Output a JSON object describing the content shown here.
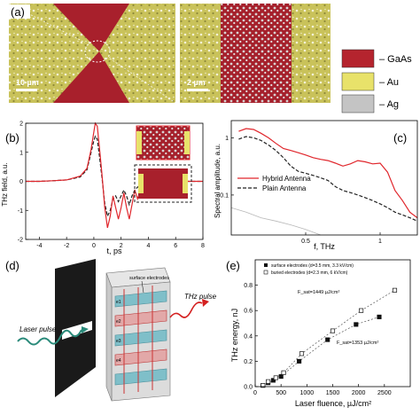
{
  "panel_a": {
    "label": "(a)",
    "scalebar_left": "10 µm",
    "scalebar_right": "2 µm",
    "legend": [
      {
        "label": "– GaAs",
        "color": "#b5242e"
      },
      {
        "label": "– Au",
        "color": "#e8e26a"
      },
      {
        "label": "– Ag",
        "color": "#c4c4c4"
      }
    ],
    "colors": {
      "gaas": "#a8202c",
      "au": "#c9c25a",
      "ag": "#d0d0d0"
    }
  },
  "panel_b": {
    "label": "(b)"
  },
  "panel_c": {
    "label": "(c)"
  },
  "panel_d": {
    "label": "(d)",
    "laser_pulse": "Laser pulse",
    "thz_pulse": "THz pulse",
    "surface_electrodes": "surface electrodes",
    "electrode_labels": [
      "e1",
      "e2",
      "e3",
      "e4"
    ]
  },
  "panel_e": {
    "label": "(e)"
  },
  "chart_data": [
    {
      "type": "line",
      "panel": "b",
      "xlabel": "t, ps",
      "ylabel": "THz field, a.u.",
      "xlim": [
        -5,
        8
      ],
      "ylim": [
        -2,
        2
      ],
      "xticks": [
        -4,
        -2,
        0,
        2,
        4,
        6,
        8
      ],
      "yticks": [
        -2,
        -1,
        0,
        1,
        2
      ],
      "series": [
        {
          "name": "Hybrid Antenna",
          "color": "#e0262c",
          "style": "solid",
          "x": [
            -5,
            -4,
            -3,
            -2,
            -1,
            -0.5,
            -0.2,
            0,
            0.1,
            0.25,
            0.4,
            0.6,
            0.8,
            1.0,
            1.2,
            1.4,
            1.6,
            1.8,
            2.0,
            2.2,
            2.4,
            2.6,
            2.8,
            3.0,
            3.2,
            3.5,
            4.0,
            4.5,
            5,
            6,
            7,
            8
          ],
          "values": [
            0,
            0,
            0.02,
            0.05,
            0.18,
            0.45,
            1.1,
            1.7,
            2.0,
            1.9,
            1.2,
            0.2,
            -0.9,
            -1.6,
            -1.2,
            -0.5,
            -0.9,
            -1.3,
            -0.9,
            -0.4,
            -0.9,
            -1.3,
            -0.8,
            -0.3,
            -0.6,
            -0.2,
            0.1,
            -0.1,
            0.05,
            0,
            0,
            0
          ]
        },
        {
          "name": "Plain Antenna",
          "color": "#222222",
          "style": "dashed",
          "x": [
            -5,
            -4,
            -3,
            -2,
            -1,
            -0.5,
            -0.2,
            0,
            0.1,
            0.25,
            0.4,
            0.6,
            0.8,
            1.0,
            1.2,
            1.4,
            1.6,
            1.8,
            2.0,
            2.2,
            2.4,
            2.6,
            2.8,
            3.0,
            3.2,
            3.5,
            4.0,
            4.5,
            5,
            6,
            7,
            8
          ],
          "values": [
            0,
            0,
            0.02,
            0.05,
            0.15,
            0.4,
            1.0,
            1.4,
            1.55,
            1.45,
            0.9,
            0.1,
            -0.75,
            -1.2,
            -1.0,
            -0.6,
            -0.5,
            -0.7,
            -0.5,
            -0.3,
            -0.5,
            -0.8,
            -0.5,
            -0.3,
            -0.2,
            -0.1,
            0.05,
            0,
            0,
            0,
            0,
            0
          ]
        }
      ]
    },
    {
      "type": "line",
      "panel": "c",
      "xlabel": "f, THz",
      "ylabel": "Spectral amplitude, a.u.",
      "yscale": "log",
      "xlim": [
        0,
        1.25
      ],
      "ylim": [
        0.02,
        2
      ],
      "xticks": [
        0.5,
        1
      ],
      "yticks": [
        0.1,
        1
      ],
      "legend_position": "center",
      "series": [
        {
          "name": "Hybrid Antenna",
          "color": "#e0262c",
          "style": "solid",
          "x": [
            0.05,
            0.1,
            0.15,
            0.2,
            0.25,
            0.3,
            0.35,
            0.4,
            0.45,
            0.5,
            0.55,
            0.6,
            0.65,
            0.7,
            0.75,
            0.8,
            0.85,
            0.9,
            0.95,
            1.0,
            1.05,
            1.1,
            1.15,
            1.2,
            1.25
          ],
          "values": [
            1.3,
            1.45,
            1.4,
            1.2,
            1.0,
            0.8,
            0.65,
            0.6,
            0.55,
            0.5,
            0.45,
            0.42,
            0.4,
            0.36,
            0.32,
            0.35,
            0.4,
            0.38,
            0.35,
            0.36,
            0.25,
            0.12,
            0.08,
            0.05,
            0.04
          ]
        },
        {
          "name": "Plain Antenna",
          "color": "#222222",
          "style": "dashed",
          "x": [
            0.05,
            0.1,
            0.15,
            0.2,
            0.25,
            0.3,
            0.35,
            0.4,
            0.45,
            0.5,
            0.55,
            0.6,
            0.65,
            0.7,
            0.75,
            0.8,
            0.85,
            0.9,
            0.95,
            1.0,
            1.05,
            1.1,
            1.15,
            1.2,
            1.25
          ],
          "values": [
            0.95,
            1.05,
            1.0,
            0.9,
            0.75,
            0.6,
            0.45,
            0.32,
            0.26,
            0.24,
            0.22,
            0.2,
            0.18,
            0.14,
            0.12,
            0.11,
            0.1,
            0.09,
            0.08,
            0.07,
            0.06,
            0.05,
            0.045,
            0.04,
            0.035
          ]
        },
        {
          "name": "",
          "color": "#b8b8b8",
          "style": "solid",
          "x": [
            0.0,
            0.1,
            0.2,
            0.3,
            0.4,
            0.5,
            0.6
          ],
          "values": [
            0.06,
            0.05,
            0.04,
            0.035,
            0.03,
            0.025,
            0.02
          ]
        }
      ]
    },
    {
      "type": "scatter",
      "panel": "e",
      "xlabel": "Laser fluence, µJ/cm²",
      "ylabel": "THz energy, nJ",
      "xlim": [
        0,
        3000
      ],
      "ylim": [
        0,
        1
      ],
      "xticks": [
        0,
        500,
        1000,
        1500,
        2000,
        2500
      ],
      "yticks": [
        0.0,
        0.2,
        0.4,
        0.6,
        0.8
      ],
      "legend_position": "top-left",
      "annotations": [
        "F_sat=1449 µJ/cm²",
        "F_sat=1353 µJ/cm²"
      ],
      "series": [
        {
          "name": "surface electrodes (d=3.5 mm, 3.3 kV/cm)",
          "marker": "filled-square",
          "x": [
            150,
            250,
            350,
            500,
            850,
            1400,
            1950,
            2400
          ],
          "values": [
            0.01,
            0.03,
            0.05,
            0.08,
            0.2,
            0.37,
            0.49,
            0.55
          ]
        },
        {
          "name": "buried electrodes (d=2.3 mm, 6 kV/cm)",
          "marker": "open-square",
          "x": [
            150,
            250,
            400,
            550,
            900,
            1500,
            2050,
            2700
          ],
          "values": [
            0.01,
            0.04,
            0.07,
            0.11,
            0.26,
            0.44,
            0.6,
            0.76
          ]
        }
      ]
    }
  ]
}
